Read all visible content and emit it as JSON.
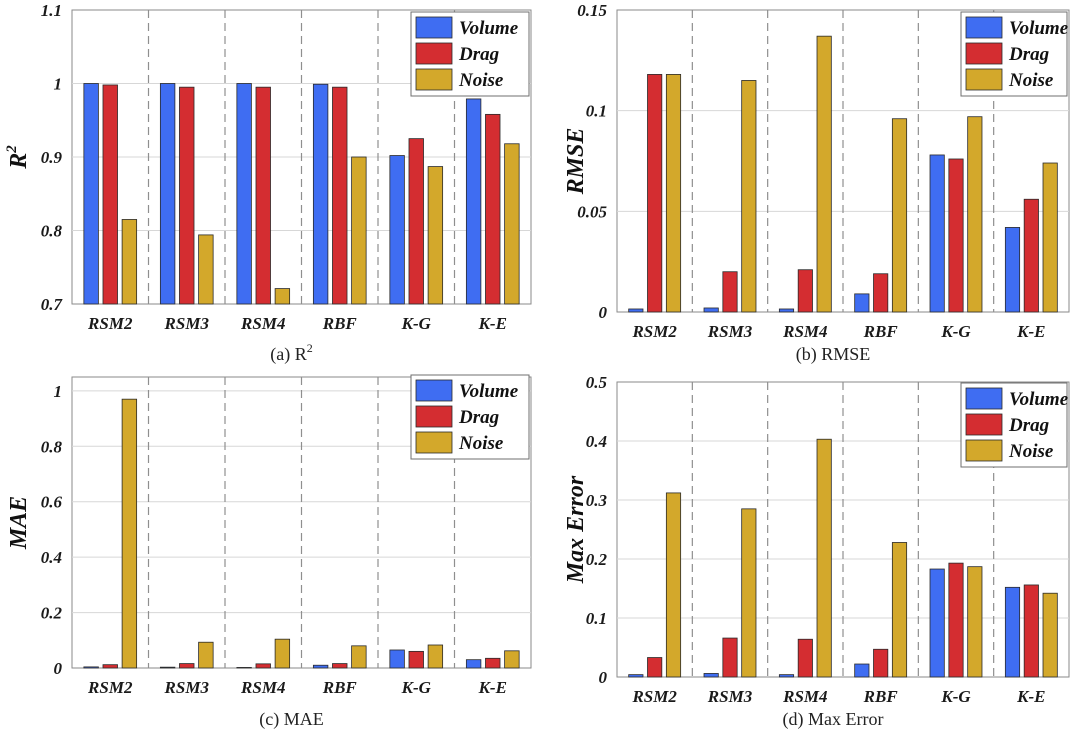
{
  "chart_data": [
    {
      "type": "bar",
      "caption": "(a) R",
      "caption_sup": "2",
      "ylabel": "R",
      "ylabel_sup": "2",
      "ylim": [
        0.7,
        1.1
      ],
      "yticks": [
        "0.7",
        "0.8",
        "0.9",
        "1",
        "1.1"
      ],
      "ytick_values": [
        0.7,
        0.8,
        0.9,
        1.0,
        1.1
      ],
      "categories": [
        "RSM2",
        "RSM3",
        "RSM4",
        "RBF",
        "K-G",
        "K-E"
      ],
      "legend_position": "top-right",
      "series": [
        {
          "name": "Volume",
          "color": "#3f6df2",
          "values": [
            1.0,
            1.0,
            1.0,
            0.999,
            0.902,
            0.979
          ]
        },
        {
          "name": "Drag",
          "color": "#d42d31",
          "values": [
            0.998,
            0.995,
            0.995,
            0.995,
            0.925,
            0.958
          ]
        },
        {
          "name": "Noise",
          "color": "#d3a82b",
          "values": [
            0.815,
            0.794,
            0.721,
            0.9,
            0.887,
            0.918
          ]
        }
      ]
    },
    {
      "type": "bar",
      "caption": "(b) RMSE",
      "ylabel": "RMSE",
      "ylim": [
        0,
        0.15
      ],
      "yticks": [
        "0",
        "0.05",
        "0.1",
        "0.15"
      ],
      "ytick_values": [
        0,
        0.05,
        0.1,
        0.15
      ],
      "categories": [
        "RSM2",
        "RSM3",
        "RSM4",
        "RBF",
        "K-G",
        "K-E"
      ],
      "legend_position": "top-right",
      "series": [
        {
          "name": "Volume",
          "color": "#3f6df2",
          "values": [
            0.0015,
            0.002,
            0.0015,
            0.009,
            0.078,
            0.042
          ]
        },
        {
          "name": "Drag",
          "color": "#d42d31",
          "values": [
            0.118,
            0.02,
            0.021,
            0.019,
            0.076,
            0.056
          ]
        },
        {
          "name": "Noise",
          "color": "#d3a82b",
          "values": [
            0.118,
            0.115,
            0.137,
            0.096,
            0.097,
            0.074
          ]
        }
      ]
    },
    {
      "type": "bar",
      "caption": "(c) MAE",
      "ylabel": "MAE",
      "ylim": [
        0,
        1.05
      ],
      "yticks": [
        "0",
        "0.2",
        "0.4",
        "0.6",
        "0.8",
        "1"
      ],
      "ytick_values": [
        0,
        0.2,
        0.4,
        0.6,
        0.8,
        1.0
      ],
      "categories": [
        "RSM2",
        "RSM3",
        "RSM4",
        "RBF",
        "K-G",
        "K-E"
      ],
      "legend_position": "top-right",
      "series": [
        {
          "name": "Volume",
          "color": "#3f6df2",
          "values": [
            0.004,
            0.003,
            0.002,
            0.01,
            0.065,
            0.03
          ]
        },
        {
          "name": "Drag",
          "color": "#d42d31",
          "values": [
            0.012,
            0.016,
            0.015,
            0.016,
            0.06,
            0.035
          ]
        },
        {
          "name": "Noise",
          "color": "#d3a82b",
          "values": [
            0.97,
            0.093,
            0.104,
            0.08,
            0.083,
            0.062
          ]
        }
      ]
    },
    {
      "type": "bar",
      "caption": "(d) Max Error",
      "ylabel": "Max Error",
      "ylim": [
        0,
        0.5
      ],
      "yticks": [
        "0",
        "0.1",
        "0.2",
        "0.3",
        "0.4",
        "0.5"
      ],
      "ytick_values": [
        0,
        0.1,
        0.2,
        0.3,
        0.4,
        0.5
      ],
      "categories": [
        "RSM2",
        "RSM3",
        "RSM4",
        "RBF",
        "K-G",
        "K-E"
      ],
      "legend_position": "top-right",
      "series": [
        {
          "name": "Volume",
          "color": "#3f6df2",
          "values": [
            0.004,
            0.006,
            0.004,
            0.022,
            0.183,
            0.152
          ]
        },
        {
          "name": "Drag",
          "color": "#d42d31",
          "values": [
            0.033,
            0.066,
            0.064,
            0.047,
            0.193,
            0.156
          ]
        },
        {
          "name": "Noise",
          "color": "#d3a82b",
          "values": [
            0.312,
            0.285,
            0.403,
            0.228,
            0.187,
            0.142
          ]
        }
      ]
    }
  ]
}
